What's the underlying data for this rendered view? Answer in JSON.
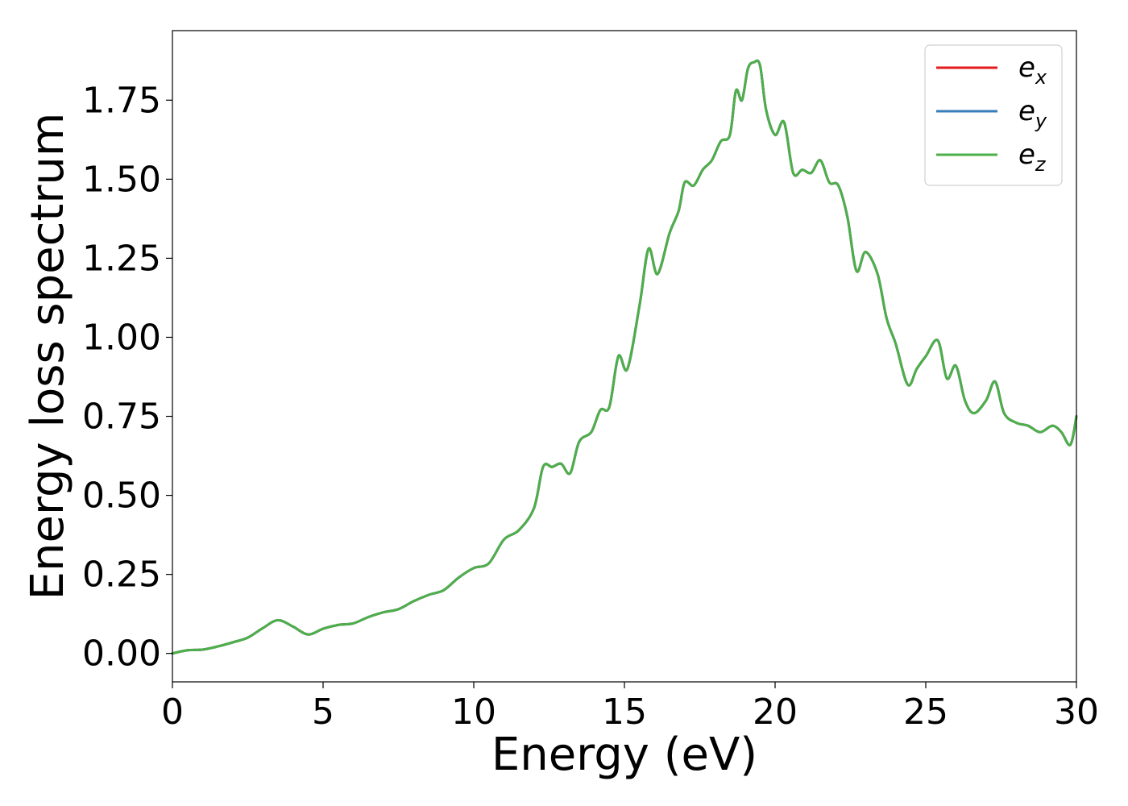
{
  "chart_data": {
    "type": "line",
    "title": "",
    "xlabel": "Energy (eV)",
    "ylabel": "Energy loss spectrum",
    "xlim": [
      0,
      30
    ],
    "ylim": [
      -0.09,
      1.97
    ],
    "xticks": [
      0,
      5,
      10,
      15,
      20,
      25,
      30
    ],
    "yticks": [
      0.0,
      0.25,
      0.5,
      0.75,
      1.0,
      1.25,
      1.5,
      1.75
    ],
    "xtick_labels": [
      "0",
      "5",
      "10",
      "15",
      "20",
      "25",
      "30"
    ],
    "ytick_labels": [
      "0.00",
      "0.25",
      "0.50",
      "0.75",
      "1.00",
      "1.25",
      "1.50",
      "1.75"
    ],
    "grid": false,
    "legend_position": "top-right",
    "x": [
      0,
      0.5,
      1.0,
      1.5,
      2.0,
      2.5,
      3.0,
      3.5,
      4.0,
      4.5,
      5.0,
      5.5,
      6.0,
      6.5,
      7.0,
      7.5,
      8.0,
      8.5,
      9.0,
      9.5,
      10.0,
      10.5,
      11.0,
      11.5,
      12.0,
      12.3,
      12.6,
      12.9,
      13.2,
      13.5,
      13.9,
      14.2,
      14.5,
      14.8,
      15.1,
      15.5,
      15.8,
      16.1,
      16.5,
      16.8,
      17.0,
      17.3,
      17.6,
      17.9,
      18.2,
      18.5,
      18.7,
      18.9,
      19.1,
      19.3,
      19.5,
      19.7,
      20.0,
      20.3,
      20.6,
      20.9,
      21.2,
      21.5,
      21.8,
      22.1,
      22.4,
      22.7,
      23.0,
      23.4,
      23.7,
      24.0,
      24.4,
      24.7,
      25.0,
      25.4,
      25.7,
      26.0,
      26.3,
      26.6,
      27.0,
      27.3,
      27.6,
      28.0,
      28.4,
      28.8,
      29.2,
      29.5,
      29.8,
      30.0
    ],
    "series": [
      {
        "name": "e_x",
        "color": "#e41a1c",
        "values": [
          0.0,
          0.01,
          0.012,
          0.022,
          0.035,
          0.05,
          0.08,
          0.105,
          0.085,
          0.06,
          0.078,
          0.09,
          0.095,
          0.115,
          0.13,
          0.14,
          0.165,
          0.185,
          0.2,
          0.24,
          0.27,
          0.285,
          0.36,
          0.39,
          0.46,
          0.59,
          0.59,
          0.6,
          0.57,
          0.67,
          0.7,
          0.77,
          0.78,
          0.94,
          0.9,
          1.1,
          1.28,
          1.2,
          1.33,
          1.4,
          1.49,
          1.48,
          1.53,
          1.56,
          1.62,
          1.64,
          1.78,
          1.75,
          1.85,
          1.87,
          1.86,
          1.72,
          1.64,
          1.68,
          1.52,
          1.53,
          1.52,
          1.56,
          1.49,
          1.48,
          1.38,
          1.21,
          1.27,
          1.2,
          1.06,
          0.98,
          0.85,
          0.9,
          0.94,
          0.99,
          0.87,
          0.91,
          0.8,
          0.76,
          0.8,
          0.86,
          0.76,
          0.73,
          0.72,
          0.7,
          0.72,
          0.7,
          0.66,
          0.75
        ]
      },
      {
        "name": "e_y",
        "color": "#377eb8",
        "values": [
          0.0,
          0.01,
          0.012,
          0.022,
          0.035,
          0.05,
          0.08,
          0.105,
          0.085,
          0.06,
          0.078,
          0.09,
          0.095,
          0.115,
          0.13,
          0.14,
          0.165,
          0.185,
          0.2,
          0.24,
          0.27,
          0.285,
          0.36,
          0.39,
          0.46,
          0.59,
          0.59,
          0.6,
          0.57,
          0.67,
          0.7,
          0.77,
          0.78,
          0.94,
          0.9,
          1.1,
          1.28,
          1.2,
          1.33,
          1.4,
          1.49,
          1.48,
          1.53,
          1.56,
          1.62,
          1.64,
          1.78,
          1.75,
          1.85,
          1.87,
          1.86,
          1.72,
          1.64,
          1.68,
          1.52,
          1.53,
          1.52,
          1.56,
          1.49,
          1.48,
          1.38,
          1.21,
          1.27,
          1.2,
          1.06,
          0.98,
          0.85,
          0.9,
          0.94,
          0.99,
          0.87,
          0.91,
          0.8,
          0.76,
          0.8,
          0.86,
          0.76,
          0.73,
          0.72,
          0.7,
          0.72,
          0.7,
          0.66,
          0.75
        ]
      },
      {
        "name": "e_z",
        "color": "#4daf4a",
        "values": [
          0.0,
          0.01,
          0.012,
          0.022,
          0.035,
          0.05,
          0.08,
          0.105,
          0.085,
          0.06,
          0.078,
          0.09,
          0.095,
          0.115,
          0.13,
          0.14,
          0.165,
          0.185,
          0.2,
          0.24,
          0.27,
          0.285,
          0.36,
          0.39,
          0.46,
          0.59,
          0.59,
          0.6,
          0.57,
          0.67,
          0.7,
          0.77,
          0.78,
          0.94,
          0.9,
          1.1,
          1.28,
          1.2,
          1.33,
          1.4,
          1.49,
          1.48,
          1.53,
          1.56,
          1.62,
          1.64,
          1.78,
          1.75,
          1.85,
          1.87,
          1.86,
          1.72,
          1.64,
          1.68,
          1.52,
          1.53,
          1.52,
          1.56,
          1.49,
          1.48,
          1.38,
          1.21,
          1.27,
          1.2,
          1.06,
          0.98,
          0.85,
          0.9,
          0.94,
          0.99,
          0.87,
          0.91,
          0.8,
          0.76,
          0.8,
          0.86,
          0.76,
          0.73,
          0.72,
          0.7,
          0.72,
          0.7,
          0.66,
          0.75
        ]
      }
    ],
    "legend": [
      {
        "base": "e",
        "sub": "x",
        "color": "#e41a1c"
      },
      {
        "base": "e",
        "sub": "y",
        "color": "#377eb8"
      },
      {
        "base": "e",
        "sub": "z",
        "color": "#4daf4a"
      }
    ]
  }
}
